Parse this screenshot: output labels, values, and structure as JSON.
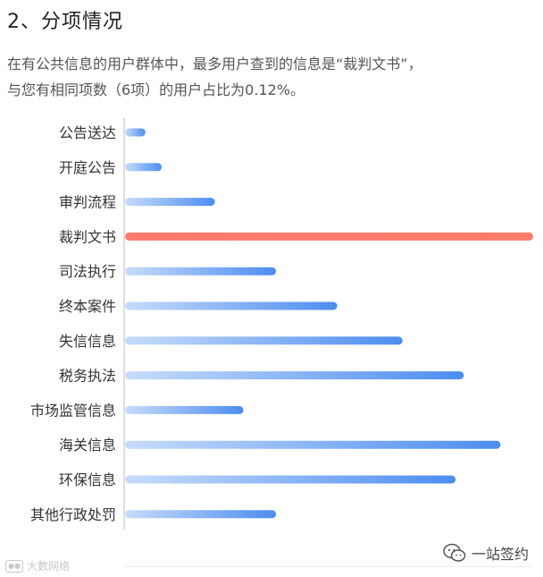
{
  "section": {
    "title": "2、分项情况",
    "description_line1": "在有公共信息的用户群体中，最多用户查到的信息是“裁判文书”，",
    "description_line2": "与您有相同项数（6项）的用户占比为0.12%。"
  },
  "chart_data": {
    "type": "bar",
    "orientation": "horizontal",
    "categories": [
      "公告送达",
      "开庭公告",
      "审判流程",
      "裁判文书",
      "司法执行",
      "终本案件",
      "失信信息",
      "税务执法",
      "市场监管信息",
      "海关信息",
      "环保信息",
      "其他行政处罚"
    ],
    "values": [
      0.05,
      0.09,
      0.22,
      1.0,
      0.37,
      0.52,
      0.68,
      0.83,
      0.29,
      0.92,
      0.81,
      0.37
    ],
    "value_unit": "relative share of users (max = 1)",
    "highlighted_category": "裁判文书",
    "xlim": [
      0,
      1
    ],
    "grid": false,
    "legend": "none",
    "colors": {
      "bar_start": "#c7dcfa",
      "bar_end": "#4d8df0",
      "highlight_start": "#ff7a6e",
      "highlight_end": "#ff7d6a",
      "axis": "#c9c9c9"
    }
  },
  "footer": {
    "watermark": "大数网络",
    "brand": "一站签约",
    "brand_icon": "wechat-icon"
  }
}
